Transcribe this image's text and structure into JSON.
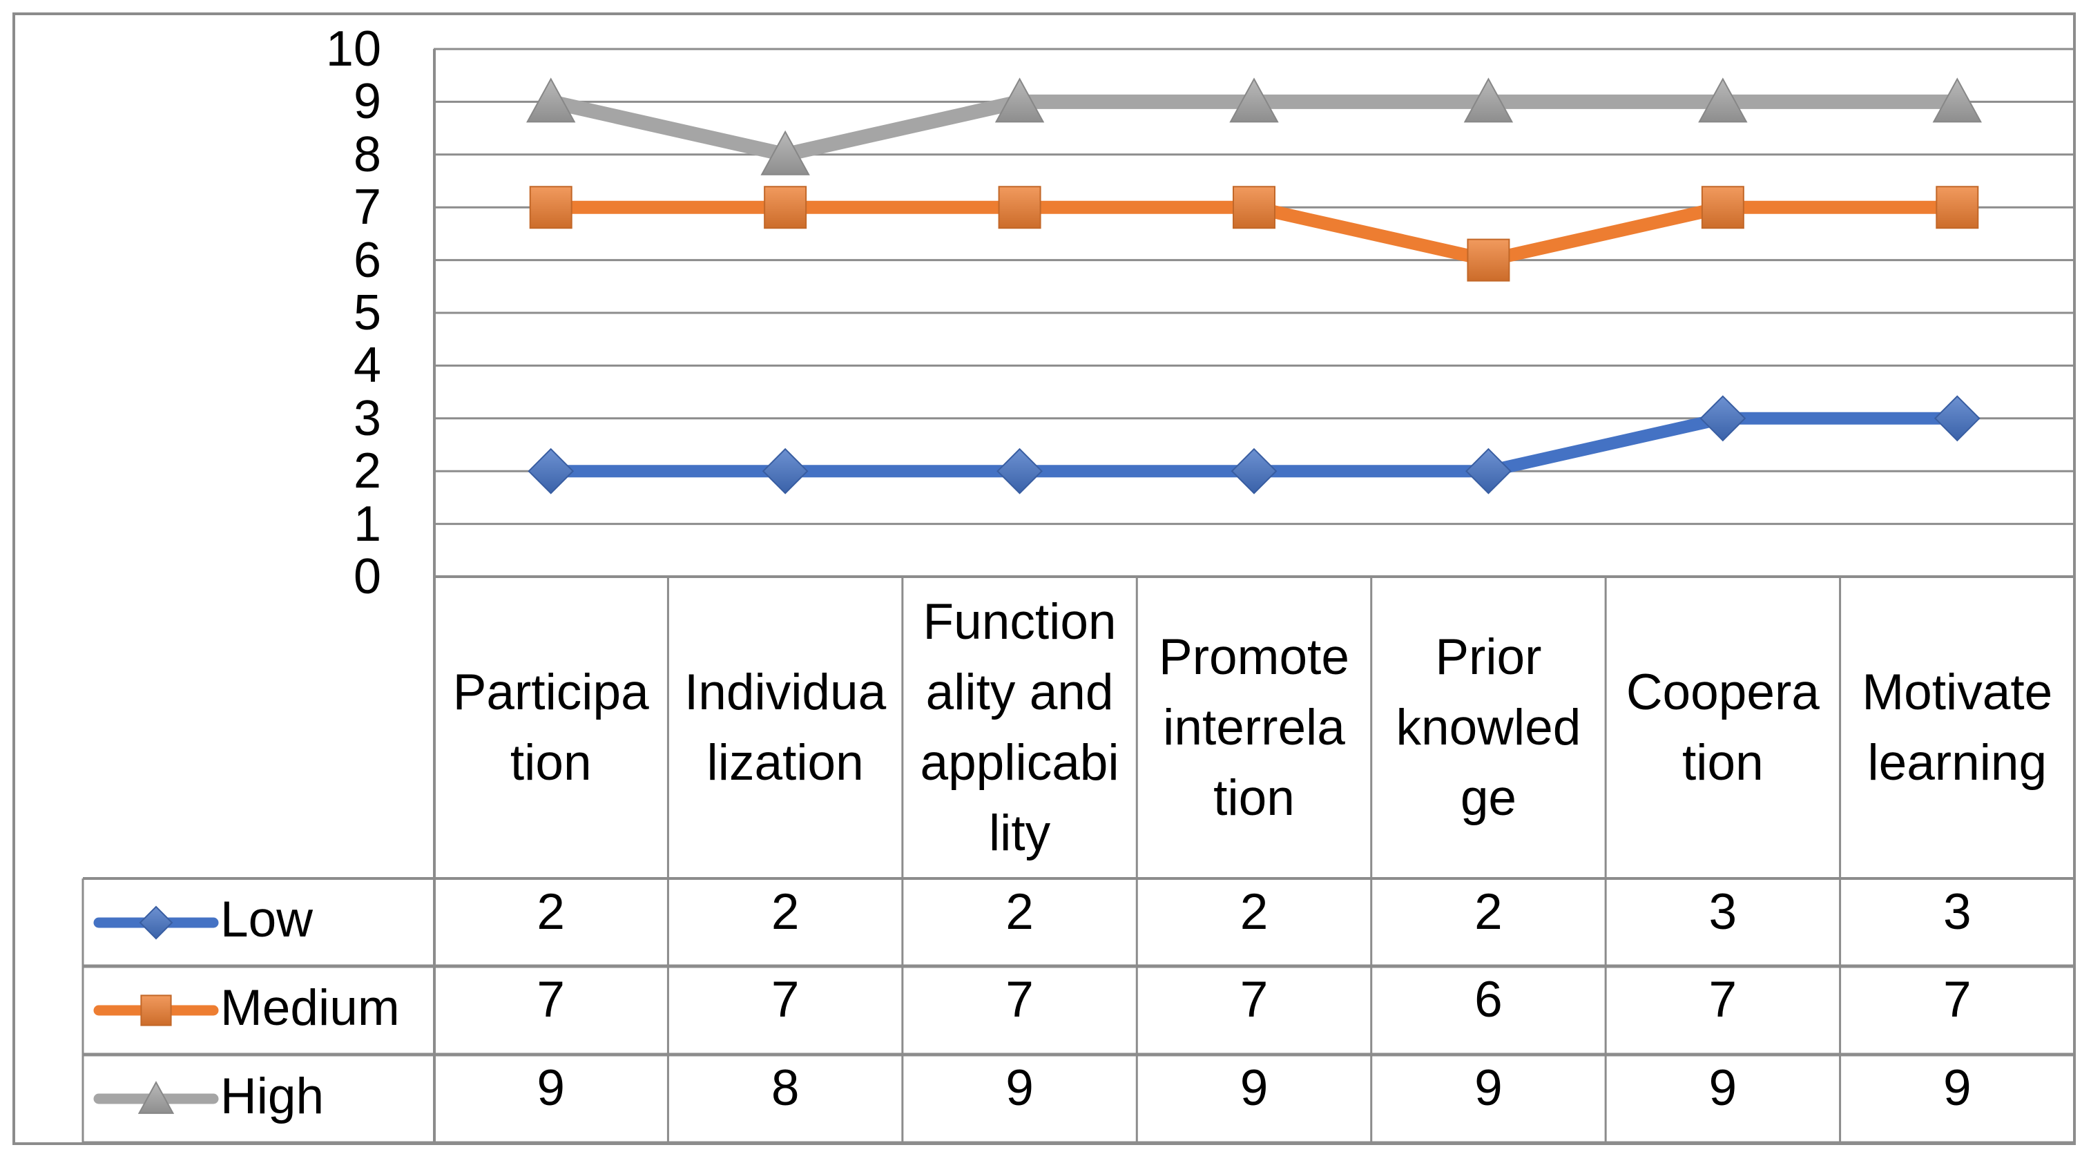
{
  "chart_data": {
    "type": "line",
    "title": "",
    "categories": [
      "Participation",
      "Individualization",
      "Functionality and applicability",
      "Promote interrelation",
      "Prior knowledge",
      "Cooperation",
      "Motivate learning"
    ],
    "category_wrap_lines": [
      [
        "Participa",
        "tion"
      ],
      [
        "Individua",
        "lization"
      ],
      [
        "Function",
        "ality and",
        "applicabi",
        "lity"
      ],
      [
        "Promote",
        "interrela",
        "tion"
      ],
      [
        "Prior",
        "knowled",
        "ge"
      ],
      [
        "Coopera",
        "tion"
      ],
      [
        "Motivate",
        "learning"
      ]
    ],
    "series": [
      {
        "name": "Low",
        "values": [
          2,
          2,
          2,
          2,
          2,
          3,
          3
        ],
        "color": "#4472C4",
        "marker": "diamond"
      },
      {
        "name": "Medium",
        "values": [
          7,
          7,
          7,
          7,
          6,
          7,
          7
        ],
        "color": "#ED7D31",
        "marker": "square"
      },
      {
        "name": "High",
        "values": [
          9,
          8,
          9,
          9,
          9,
          9,
          9
        ],
        "color": "#A5A5A5",
        "marker": "triangle"
      }
    ],
    "ylim": [
      0,
      10
    ],
    "yticks": [
      0,
      1,
      2,
      3,
      4,
      5,
      6,
      7,
      8,
      9,
      10
    ],
    "grid": "horizontal-major",
    "legend_position": "data-table-left",
    "data_table_shown": true
  },
  "colors": {
    "background": "#FFFFFF",
    "grid_and_borders": "#8C8C8C",
    "text": "#000000",
    "series_low": "#4472C4",
    "series_medium": "#ED7D31",
    "series_high": "#A5A5A5"
  }
}
